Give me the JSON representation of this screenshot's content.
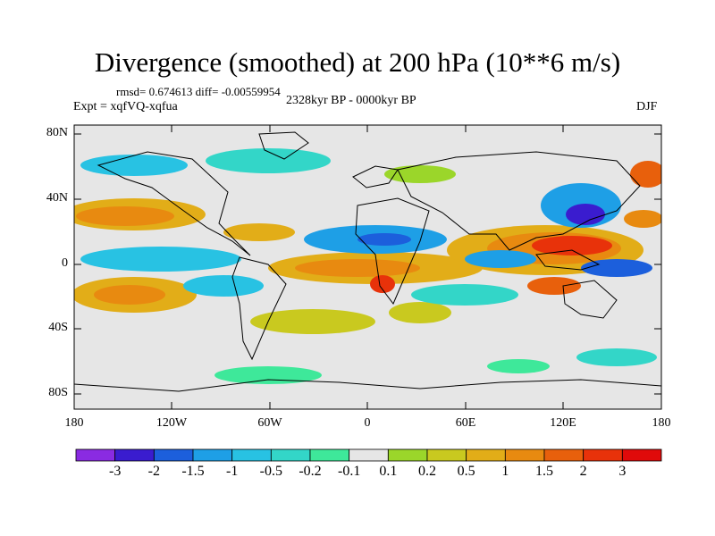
{
  "title": "Divergence (smoothed) at 200 hPa (10**6 m/s)",
  "stats": "rmsd= 0.674613 diff= -0.00559954",
  "experiment": "Expt = xqfVQ-xqfua",
  "period": "2328kyr BP - 0000kyr BP",
  "season": "DJF",
  "lat_labels": [
    "80N",
    "40N",
    "0",
    "40S",
    "80S"
  ],
  "lon_labels": [
    "180",
    "120W",
    "60W",
    "0",
    "60E",
    "120E",
    "180"
  ],
  "colorbar": {
    "tick_labels": [
      "-3",
      "-2",
      "-1.5",
      "-1",
      "-0.5",
      "-0.2",
      "-0.1",
      "0.1",
      "0.2",
      "0.5",
      "1",
      "1.5",
      "2",
      "3"
    ],
    "colors": [
      "#8a2be2",
      "#3a1ccf",
      "#1c5fdc",
      "#1e9fe6",
      "#28c2e3",
      "#33d6c8",
      "#3ee89a",
      "#e6e6e6",
      "#9bd62a",
      "#c9c91f",
      "#e2ad18",
      "#e88a10",
      "#e8600c",
      "#e8320a",
      "#e00a0a"
    ]
  }
}
